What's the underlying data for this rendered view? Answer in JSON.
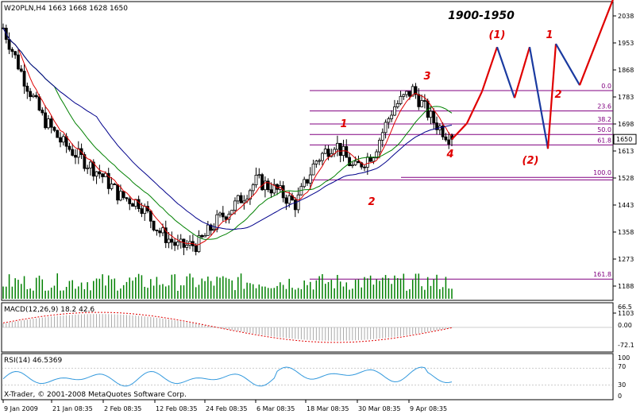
{
  "window": {
    "header": "W20PLN,H4  1663 1668 1628 1650",
    "copyright": "X-Trader, © 2001-2008 MetaQuotes Software Corp."
  },
  "annotations": {
    "target": "1900-1950",
    "wave_labels": [
      "1",
      "2",
      "3",
      "4",
      "(1)",
      "(2)",
      "1",
      "2"
    ]
  },
  "colors": {
    "up_candle": "#000000",
    "down_candle": "#000000",
    "ma_fast": "#e00000",
    "ma_mid": "#008000",
    "ma_slow": "#00008b",
    "projection_up": "#e00000",
    "projection_down": "#1a3aa0",
    "fib_lines": "#800080",
    "macd_signal": "#e00000",
    "rsi_line": "#3399dd",
    "price_box": "#ffffff"
  },
  "chart_data": [
    {
      "type": "candlestick",
      "title": "W20PLN,H4",
      "ohlc_last": {
        "open": 1663,
        "high": 1668,
        "low": 1628,
        "close": 1650
      },
      "y_ticks": [
        2038,
        1953,
        1868,
        1783,
        1698,
        1613,
        1528,
        1443,
        1358,
        1273,
        1188,
        1103
      ],
      "ylim": [
        1100,
        2080
      ],
      "current_price_label": "1650",
      "x_ticks": [
        "9 Jan 2009",
        "21 Jan 08:35",
        "2 Feb 08:35",
        "12 Feb 08:35",
        "24 Feb 08:35",
        "6 Mar 08:35",
        "18 Mar 08:35",
        "30 Mar 08:35",
        "9 Apr 08:35"
      ],
      "fibonacci_levels": [
        {
          "label": "0.0",
          "price": 1803
        },
        {
          "label": "23.6",
          "price": 1739
        },
        {
          "label": "38.2",
          "price": 1698
        },
        {
          "label": "50.0",
          "price": 1665
        },
        {
          "label": "61.8",
          "price": 1632
        },
        {
          "label": "100.0",
          "price": 1530
        },
        {
          "label": "161.8",
          "price": 1210
        }
      ],
      "price_path_approx": [
        2000,
        1850,
        1720,
        1640,
        1590,
        1540,
        1470,
        1450,
        1360,
        1310,
        1320,
        1395,
        1450,
        1520,
        1490,
        1445,
        1580,
        1640,
        1555,
        1610,
        1750,
        1805,
        1710,
        1650
      ],
      "projection_path": [
        1650,
        1700,
        1800,
        1940,
        1780,
        1940,
        1620,
        1950,
        1820,
        2090
      ]
    },
    {
      "type": "area",
      "title": "MACD(12,26,9) 18.2 42.6",
      "y_ticks": [
        "66.5",
        "0.00",
        "-72.1"
      ],
      "values": {
        "macd": 18.2,
        "signal": 42.6
      }
    },
    {
      "type": "line",
      "title": "RSI(14) 46.5369",
      "y_ticks": [
        "100",
        "70",
        "30",
        "0"
      ],
      "values": {
        "rsi": 46.5369
      }
    }
  ]
}
